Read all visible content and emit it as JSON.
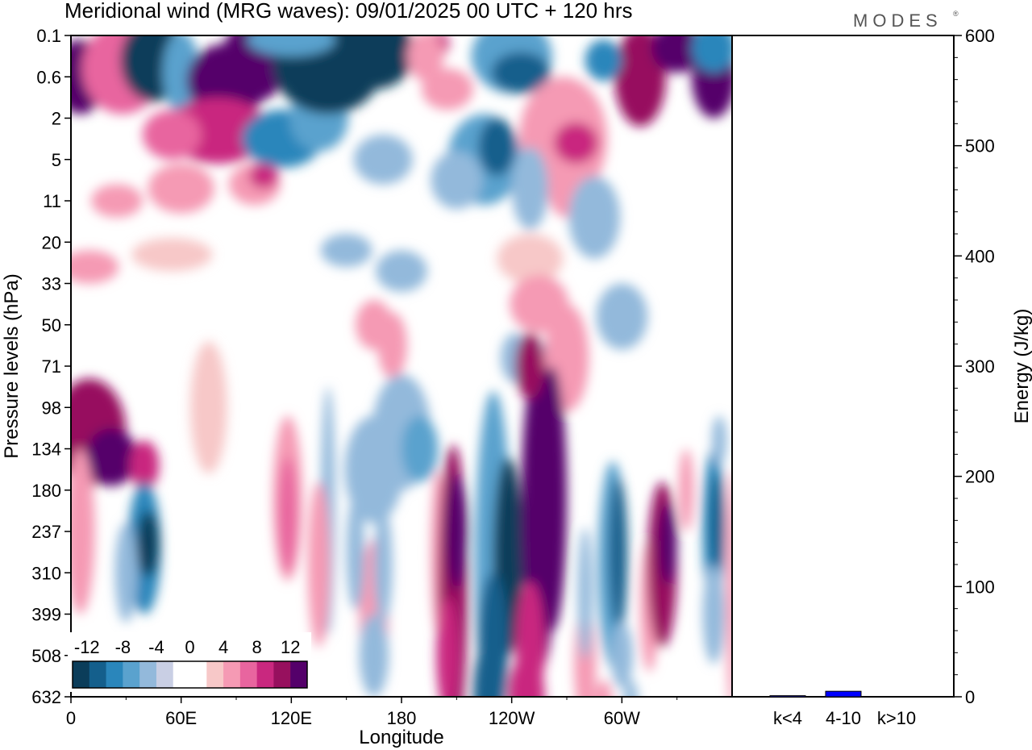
{
  "title": "Meridional wind (MRG waves):  09/01/2025  00 UTC  + 120 hrs",
  "logo_text": "MODES",
  "logo_mark": "®",
  "chart_data": [
    {
      "type": "heatmap",
      "variable": "Meridional wind (MRG waves)",
      "xlabel": "Longitude",
      "ylabel": "Pressure levels (hPa)",
      "x_ticks": [
        "0",
        "60E",
        "120E",
        "180",
        "120W",
        "60W"
      ],
      "y_ticks": [
        "0.1",
        "0.6",
        "2",
        "5",
        "11",
        "20",
        "33",
        "50",
        "71",
        "98",
        "134",
        "180",
        "237",
        "310",
        "399",
        "508",
        "632"
      ],
      "colorbar_labels": [
        "-12",
        "-8",
        "-4",
        "0",
        "4",
        "8",
        "12"
      ],
      "colors": {
        "negative": [
          "#0b3d5a",
          "#145f8c",
          "#2a86bb",
          "#5aa2ce",
          "#93b9db",
          "#c9cfe4"
        ],
        "zero": "#ffffff",
        "positive": [
          "#f7c8c8",
          "#f59ab4",
          "#e8659f",
          "#c9287f",
          "#97105e",
          "#54006a"
        ]
      },
      "features": [
        {
          "name": "upper-level alternating cells",
          "levels": [
            "0.1",
            "5"
          ],
          "amplitude": 12
        },
        {
          "name": "negative core near 120W",
          "lon": "120W",
          "levels": [
            "134",
            "508"
          ],
          "value": -12
        },
        {
          "name": "positive core east of 120W",
          "lon": "100W",
          "levels": [
            "98",
            "399"
          ],
          "value": 12
        },
        {
          "name": "positive core near 150W",
          "lon": "150W",
          "levels": [
            "180",
            "508"
          ],
          "value": 12
        },
        {
          "name": "positive core near 20W",
          "lon": "20W",
          "levels": [
            "180",
            "399"
          ],
          "value": 12
        }
      ]
    },
    {
      "type": "bar",
      "categories": [
        "k<4",
        "4-10",
        "k>10"
      ],
      "values": [
        1,
        5,
        0
      ],
      "ylabel": "Energy (J/kg)",
      "ylim": [
        0,
        600
      ],
      "y_ticks": [
        "0",
        "100",
        "200",
        "300",
        "400",
        "500",
        "600"
      ],
      "bar_colors": [
        "#0000ff",
        "#0000ff",
        "#0000ff"
      ]
    }
  ]
}
